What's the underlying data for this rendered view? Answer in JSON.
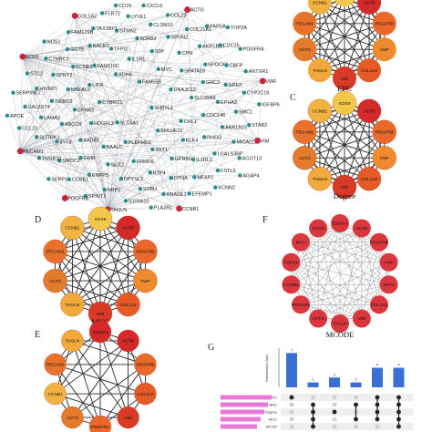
{
  "network_genes": [
    "SH3YL1",
    "SLC6A1",
    "FAM55B",
    "BHLHE22",
    "CYBRD1",
    "DNAJC12",
    "PLEKHG1",
    "ADH6",
    "CHL1",
    "HDGFL3",
    "MYC",
    "SYT1",
    "LIFR",
    "SLC39A8",
    "BAALC",
    "IL1R1",
    "KLK4",
    "EPHA3",
    "SPATA18",
    "FRMD6",
    "FAM110C",
    "CDC146",
    "AADAT",
    "S0P",
    "GPR50",
    "NBEAL2",
    "GRC3",
    "SLIT2",
    "TFPI2",
    "RHOD",
    "ABCC9",
    "CPN",
    "RTP4",
    "KCNE3",
    "EPHA2",
    "GEM",
    "ADRB2",
    "IL1RL1",
    "TRIM22",
    "SPOCK1",
    "DPYSL3",
    "BACE2",
    "AKR1B15",
    "IFIT3",
    "SPON2",
    "DTNA",
    "SPRY2",
    "NREP",
    "ENPP5",
    "STMN2",
    "LGALS3BP",
    "LAMA2",
    "AKR1B10",
    "SYBU",
    "GGT5",
    "SMC1",
    "SMOC2",
    "CLDN10",
    "MFAP2",
    "HIVEP1",
    "CBFP",
    "NRP1",
    "TAX1BP1",
    "MICALL2",
    "SLITRK3",
    "COL21A1",
    "RNASE1",
    "CTHRC1",
    "CYP2C19",
    "CCBE1",
    "LYVE1",
    "FSTL3",
    "GAL3ST4",
    "CDC25",
    "S100A10",
    "FAM129B",
    "STAB2",
    "TMSB10",
    "COL23",
    "EFEMP1",
    "STC2",
    "ANTXR1",
    "SPINT2",
    "FLRT2",
    "ACOT13",
    "CCL23",
    "PARVA",
    "PLA2R1",
    "NOS1",
    "IGFBP6",
    "SEPP1",
    "CXCL6",
    "KCNN2",
    "SERPINE2",
    "PDGFRA",
    "TAGLN",
    "COL1A2",
    "VIM",
    "PECAM1",
    "ACTG",
    "CCNB1",
    "SOX9",
    "VWF",
    "PDGFRB",
    "CD74",
    "AGAP4",
    "APOE",
    "TOP2A"
  ],
  "hub_nodes": [
    {
      "name": "SOX9",
      "color": "#f3c84a"
    },
    {
      "name": "ACTB",
      "color": "#d42a2a"
    },
    {
      "name": "PDGFRB",
      "color": "#e9682a"
    },
    {
      "name": "VWF",
      "color": "#ef8a2e"
    },
    {
      "name": "COL1A2",
      "color": "#e65a26"
    },
    {
      "name": "VIM",
      "color": "#d83a26"
    },
    {
      "name": "TAGLN",
      "color": "#f0a93a"
    },
    {
      "name": "ACTG",
      "color": "#e47a2c"
    },
    {
      "name": "PECAM1",
      "color": "#e8722c"
    },
    {
      "name": "CCNB1",
      "color": "#f1b241"
    }
  ],
  "panels": {
    "A_partial": {
      "title": "EPC"
    },
    "C": {
      "letter": "C",
      "title": "Degree",
      "nodes": [
        "SOX9",
        "ACTB",
        "PDGFRB",
        "VWF",
        "COL1A2",
        "VIM",
        "TAGLN",
        "ACTG",
        "PECAM1",
        "CCNB1"
      ]
    },
    "D": {
      "letter": "D",
      "title": "MNC",
      "nodes": [
        "SOX9",
        "ACTB",
        "PDGFRB",
        "VWF",
        "COL1A2",
        "VIM",
        "TAGLN",
        "ACTG",
        "PECAM1",
        "CCNB1"
      ]
    },
    "E": {
      "letter": "E",
      "title": "",
      "nodes": [
        "S100A4",
        "ACTB",
        "PDGFRB",
        "COL1A2",
        "VIM",
        "PDGFRA",
        "ACTG",
        "CCNB1",
        "PECAM1",
        "TAGLN"
      ]
    },
    "F": {
      "letter": "F",
      "title": "MCODE",
      "nodes": [
        "S100A4",
        "ACTB",
        "PDGFRB",
        "VWF",
        "SPP1",
        "COL1A2",
        "VIM",
        "TAGLN",
        "ACTG",
        "PECAM1",
        "CCNB1",
        "TOP2A",
        "MYC",
        "SOX9"
      ]
    }
  },
  "panel_g": {
    "letter": "G",
    "ylabel": "Intersection Size",
    "bar_values": [
      7,
      1,
      2,
      1,
      4,
      4
    ],
    "sets": [
      "EPC",
      "MNC",
      "Degree",
      "MCC",
      "MCOD"
    ],
    "matrix": [
      [
        0
      ],
      [
        1,
        2,
        3,
        4
      ],
      [
        2
      ],
      [
        1,
        3
      ],
      [
        0,
        1,
        2,
        3
      ],
      [
        0,
        1,
        2,
        3,
        4
      ]
    ]
  },
  "colors": {
    "edge": "#333333",
    "network_node": "#2a8c8c",
    "highlight_node": "#c8243c",
    "upset_bar": "#3a6fd6",
    "set_bar": "#e878d8"
  }
}
